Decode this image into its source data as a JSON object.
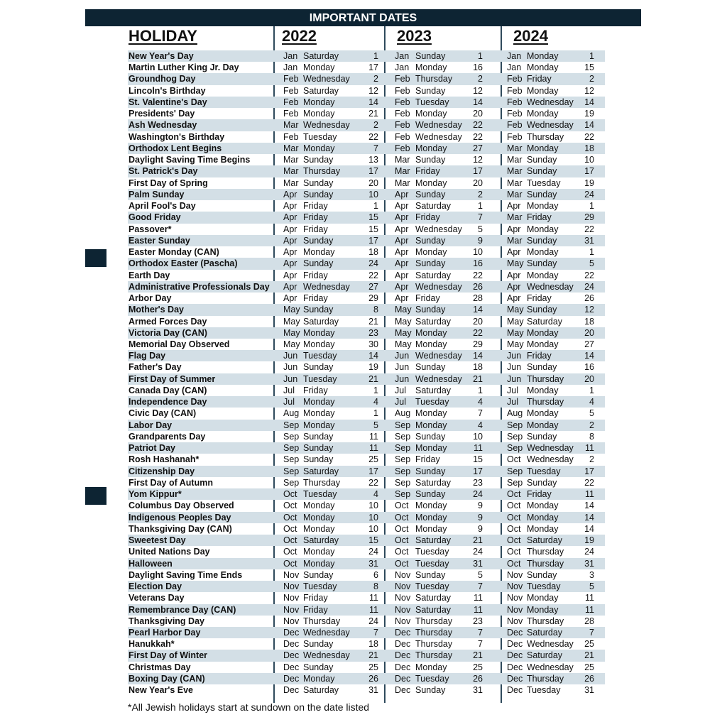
{
  "title": "IMPORTANT DATES",
  "headers": {
    "holiday": "HOLIDAY",
    "years": [
      "2022",
      "2023",
      "2024"
    ]
  },
  "colors": {
    "bar": "#0d2433",
    "stripe": "#d3dfe6",
    "divider": "#2f4a5c"
  },
  "rows": [
    [
      "New Year's Day",
      "Jan",
      "Saturday",
      "1",
      "Jan",
      "Sunday",
      "1",
      "Jan",
      "Monday",
      "1"
    ],
    [
      "Martin Luther King Jr. Day",
      "Jan",
      "Monday",
      "17",
      "Jan",
      "Monday",
      "16",
      "Jan",
      "Monday",
      "15"
    ],
    [
      "Groundhog Day",
      "Feb",
      "Wednesday",
      "2",
      "Feb",
      "Thursday",
      "2",
      "Feb",
      "Friday",
      "2"
    ],
    [
      "Lincoln's Birthday",
      "Feb",
      "Saturday",
      "12",
      "Feb",
      "Sunday",
      "12",
      "Feb",
      "Monday",
      "12"
    ],
    [
      "St. Valentine's Day",
      "Feb",
      "Monday",
      "14",
      "Feb",
      "Tuesday",
      "14",
      "Feb",
      "Wednesday",
      "14"
    ],
    [
      "Presidents' Day",
      "Feb",
      "Monday",
      "21",
      "Feb",
      "Monday",
      "20",
      "Feb",
      "Monday",
      "19"
    ],
    [
      "Ash Wednesday",
      "Mar",
      "Wednesday",
      "2",
      "Feb",
      "Wednesday",
      "22",
      "Feb",
      "Wednesday",
      "14"
    ],
    [
      "Washington's Birthday",
      "Feb",
      "Tuesday",
      "22",
      "Feb",
      "Wednesday",
      "22",
      "Feb",
      "Thursday",
      "22"
    ],
    [
      "Orthodox Lent Begins",
      "Mar",
      "Monday",
      "7",
      "Feb",
      "Monday",
      "27",
      "Mar",
      "Monday",
      "18"
    ],
    [
      "Daylight Saving Time Begins",
      "Mar",
      "Sunday",
      "13",
      "Mar",
      "Sunday",
      "12",
      "Mar",
      "Sunday",
      "10"
    ],
    [
      "St. Patrick's Day",
      "Mar",
      "Thursday",
      "17",
      "Mar",
      "Friday",
      "17",
      "Mar",
      "Sunday",
      "17"
    ],
    [
      "First Day of Spring",
      "Mar",
      "Sunday",
      "20",
      "Mar",
      "Monday",
      "20",
      "Mar",
      "Tuesday",
      "19"
    ],
    [
      "Palm Sunday",
      "Apr",
      "Sunday",
      "10",
      "Apr",
      "Sunday",
      "2",
      "Mar",
      "Sunday",
      "24"
    ],
    [
      "April Fool's Day",
      "Apr",
      "Friday",
      "1",
      "Apr",
      "Saturday",
      "1",
      "Apr",
      "Monday",
      "1"
    ],
    [
      "Good Friday",
      "Apr",
      "Friday",
      "15",
      "Apr",
      "Friday",
      "7",
      "Mar",
      "Friday",
      "29"
    ],
    [
      "Passover*",
      "Apr",
      "Friday",
      "15",
      "Apr",
      "Wednesday",
      "5",
      "Apr",
      "Monday",
      "22"
    ],
    [
      "Easter Sunday",
      "Apr",
      "Sunday",
      "17",
      "Apr",
      "Sunday",
      "9",
      "Mar",
      "Sunday",
      "31"
    ],
    [
      "Easter Monday (CAN)",
      "Apr",
      "Monday",
      "18",
      "Apr",
      "Monday",
      "10",
      "Apr",
      "Monday",
      "1"
    ],
    [
      "Orthodox Easter (Pascha)",
      "Apr",
      "Sunday",
      "24",
      "Apr",
      "Sunday",
      "16",
      "May",
      "Sunday",
      "5"
    ],
    [
      "Earth Day",
      "Apr",
      "Friday",
      "22",
      "Apr",
      "Saturday",
      "22",
      "Apr",
      "Monday",
      "22"
    ],
    [
      "Administrative Professionals Day",
      "Apr",
      "Wednesday",
      "27",
      "Apr",
      "Wednesday",
      "26",
      "Apr",
      "Wednesday",
      "24"
    ],
    [
      "Arbor Day",
      "Apr",
      "Friday",
      "29",
      "Apr",
      "Friday",
      "28",
      "Apr",
      "Friday",
      "26"
    ],
    [
      "Mother's Day",
      "May",
      "Sunday",
      "8",
      "May",
      "Sunday",
      "14",
      "May",
      "Sunday",
      "12"
    ],
    [
      "Armed Forces Day",
      "May",
      "Saturday",
      "21",
      "May",
      "Saturday",
      "20",
      "May",
      "Saturday",
      "18"
    ],
    [
      "Victoria Day (CAN)",
      "May",
      "Monday",
      "23",
      "May",
      "Monday",
      "22",
      "May",
      "Monday",
      "20"
    ],
    [
      "Memorial Day Observed",
      "May",
      "Monday",
      "30",
      "May",
      "Monday",
      "29",
      "May",
      "Monday",
      "27"
    ],
    [
      "Flag Day",
      "Jun",
      "Tuesday",
      "14",
      "Jun",
      "Wednesday",
      "14",
      "Jun",
      "Friday",
      "14"
    ],
    [
      "Father's Day",
      "Jun",
      "Sunday",
      "19",
      "Jun",
      "Sunday",
      "18",
      "Jun",
      "Sunday",
      "16"
    ],
    [
      "First Day of Summer",
      "Jun",
      "Tuesday",
      "21",
      "Jun",
      "Wednesday",
      "21",
      "Jun",
      "Thursday",
      "20"
    ],
    [
      "Canada Day (CAN)",
      "Jul",
      "Friday",
      "1",
      "Jul",
      "Saturday",
      "1",
      "Jul",
      "Monday",
      "1"
    ],
    [
      "Independence Day",
      "Jul",
      "Monday",
      "4",
      "Jul",
      "Tuesday",
      "4",
      "Jul",
      "Thursday",
      "4"
    ],
    [
      "Civic Day (CAN)",
      "Aug",
      "Monday",
      "1",
      "Aug",
      "Monday",
      "7",
      "Aug",
      "Monday",
      "5"
    ],
    [
      "Labor Day",
      "Sep",
      "Monday",
      "5",
      "Sep",
      "Monday",
      "4",
      "Sep",
      "Monday",
      "2"
    ],
    [
      "Grandparents Day",
      "Sep",
      "Sunday",
      "11",
      "Sep",
      "Sunday",
      "10",
      "Sep",
      "Sunday",
      "8"
    ],
    [
      "Patriot Day",
      "Sep",
      "Sunday",
      "11",
      "Sep",
      "Monday",
      "11",
      "Sep",
      "Wednesday",
      "11"
    ],
    [
      "Rosh Hashanah*",
      "Sep",
      "Sunday",
      "25",
      "Sep",
      "Friday",
      "15",
      "Oct",
      "Wednesday",
      "2"
    ],
    [
      "Citizenship Day",
      "Sep",
      "Saturday",
      "17",
      "Sep",
      "Sunday",
      "17",
      "Sep",
      "Tuesday",
      "17"
    ],
    [
      "First Day of Autumn",
      "Sep",
      "Thursday",
      "22",
      "Sep",
      "Saturday",
      "23",
      "Sep",
      "Sunday",
      "22"
    ],
    [
      "Yom Kippur*",
      "Oct",
      "Tuesday",
      "4",
      "Sep",
      "Sunday",
      "24",
      "Oct",
      "Friday",
      "11"
    ],
    [
      "Columbus Day Observed",
      "Oct",
      "Monday",
      "10",
      "Oct",
      "Monday",
      "9",
      "Oct",
      "Monday",
      "14"
    ],
    [
      "Indigenous Peoples Day",
      "Oct",
      "Monday",
      "10",
      "Oct",
      "Monday",
      "9",
      "Oct",
      "Monday",
      "14"
    ],
    [
      "Thanksgiving Day (CAN)",
      "Oct",
      "Monday",
      "10",
      "Oct",
      "Monday",
      "9",
      "Oct",
      "Monday",
      "14"
    ],
    [
      "Sweetest Day",
      "Oct",
      "Saturday",
      "15",
      "Oct",
      "Saturday",
      "21",
      "Oct",
      "Saturday",
      "19"
    ],
    [
      "United Nations Day",
      "Oct",
      "Monday",
      "24",
      "Oct",
      "Tuesday",
      "24",
      "Oct",
      "Thursday",
      "24"
    ],
    [
      "Halloween",
      "Oct",
      "Monday",
      "31",
      "Oct",
      "Tuesday",
      "31",
      "Oct",
      "Thursday",
      "31"
    ],
    [
      "Daylight Saving Time Ends",
      "Nov",
      "Sunday",
      "6",
      "Nov",
      "Sunday",
      "5",
      "Nov",
      "Sunday",
      "3"
    ],
    [
      "Election Day",
      "Nov",
      "Tuesday",
      "8",
      "Nov",
      "Tuesday",
      "7",
      "Nov",
      "Tuesday",
      "5"
    ],
    [
      "Veterans Day",
      "Nov",
      "Friday",
      "11",
      "Nov",
      "Saturday",
      "11",
      "Nov",
      "Monday",
      "11"
    ],
    [
      "Remembrance Day (CAN)",
      "Nov",
      "Friday",
      "11",
      "Nov",
      "Saturday",
      "11",
      "Nov",
      "Monday",
      "11"
    ],
    [
      "Thanksgiving Day",
      "Nov",
      "Thursday",
      "24",
      "Nov",
      "Thursday",
      "23",
      "Nov",
      "Thursday",
      "28"
    ],
    [
      "Pearl Harbor Day",
      "Dec",
      "Wednesday",
      "7",
      "Dec",
      "Thursday",
      "7",
      "Dec",
      "Saturday",
      "7"
    ],
    [
      "Hanukkah*",
      "Dec",
      "Sunday",
      "18",
      "Dec",
      "Thursday",
      "7",
      "Dec",
      "Wednesday",
      "25"
    ],
    [
      "First Day of Winter",
      "Dec",
      "Wednesday",
      "21",
      "Dec",
      "Thursday",
      "21",
      "Dec",
      "Saturday",
      "21"
    ],
    [
      "Christmas Day",
      "Dec",
      "Sunday",
      "25",
      "Dec",
      "Monday",
      "25",
      "Dec",
      "Wednesday",
      "25"
    ],
    [
      "Boxing Day (CAN)",
      "Dec",
      "Monday",
      "26",
      "Dec",
      "Tuesday",
      "26",
      "Dec",
      "Thursday",
      "26"
    ],
    [
      "New Year's Eve",
      "Dec",
      "Saturday",
      "31",
      "Dec",
      "Sunday",
      "31",
      "Dec",
      "Tuesday",
      "31"
    ]
  ],
  "footnote": "*All Jewish holidays start at sundown on the date listed"
}
